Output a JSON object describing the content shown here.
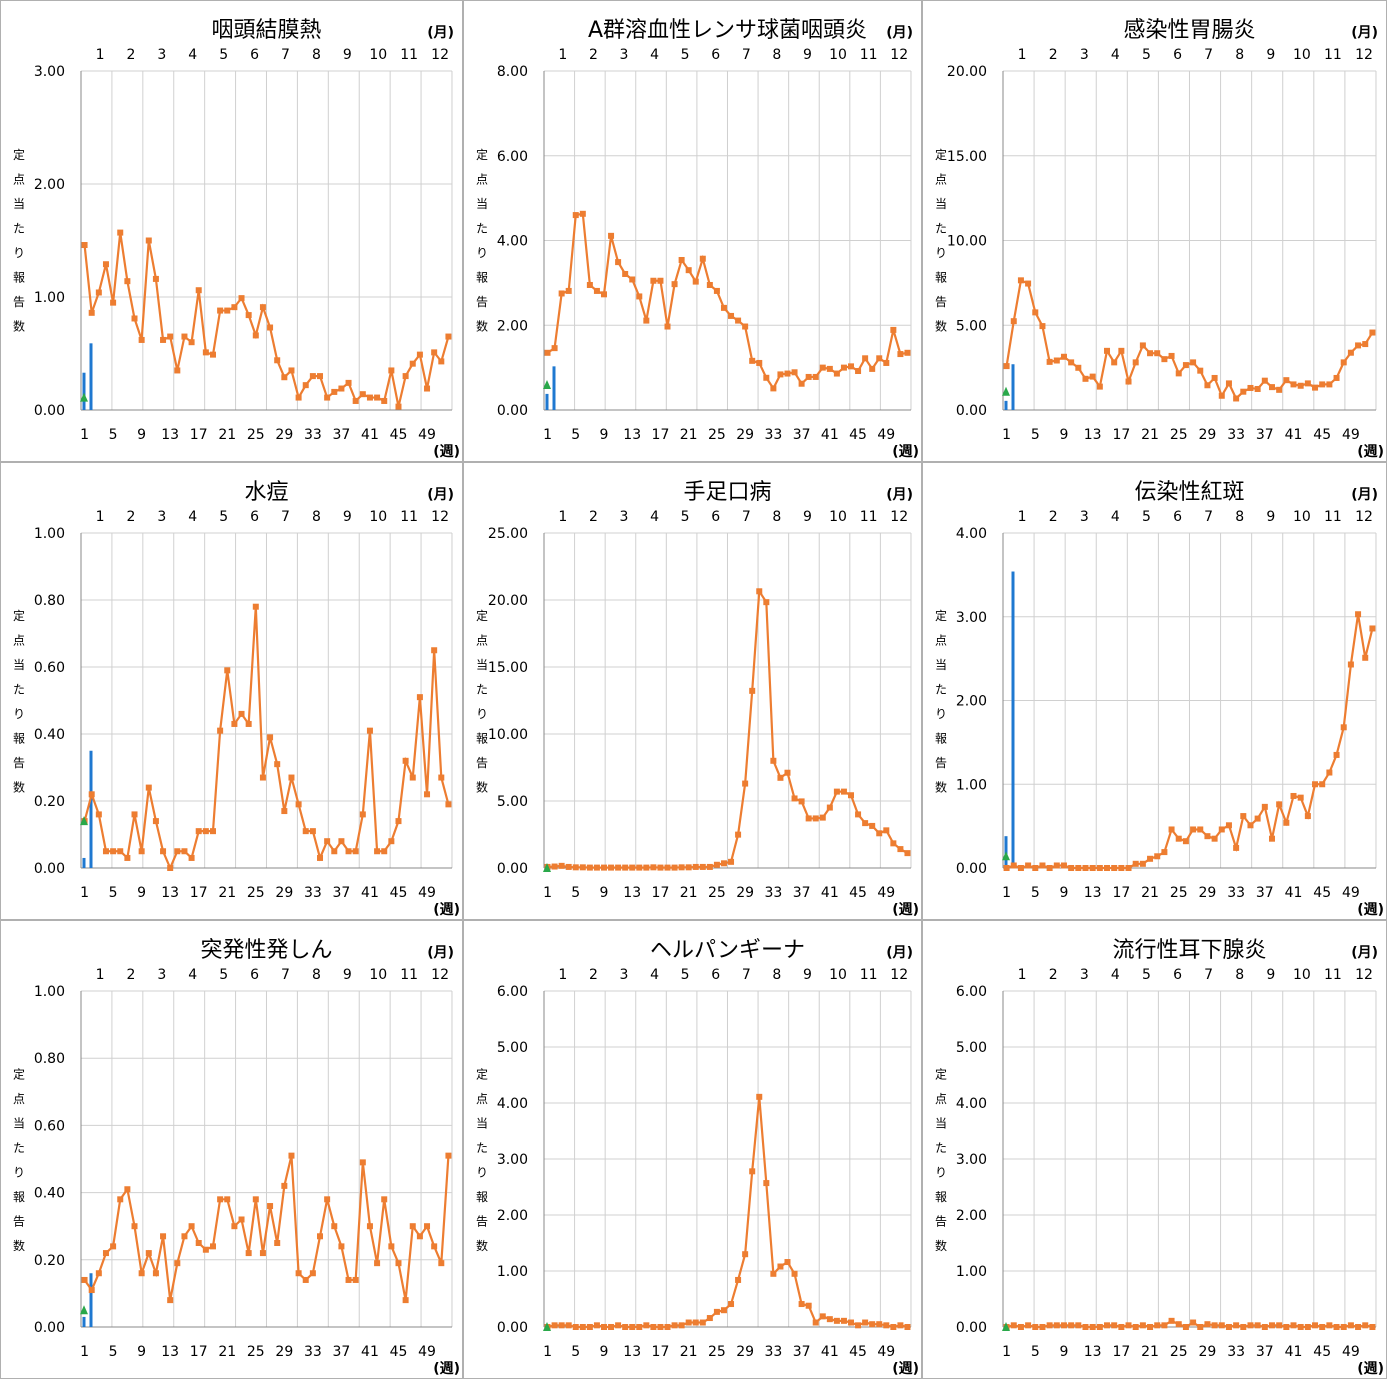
{
  "common": {
    "month_unit": "(月)",
    "week_unit": "(週)",
    "y_label_chars": [
      "定",
      "点",
      "当",
      "た",
      "り",
      "報",
      "告",
      "数"
    ],
    "month_labels": [
      "1",
      "2",
      "3",
      "4",
      "5",
      "6",
      "7",
      "8",
      "9",
      "10",
      "11",
      "12"
    ],
    "x_tick_labels": [
      "1",
      "5",
      "9",
      "13",
      "17",
      "21",
      "25",
      "29",
      "33",
      "37",
      "41",
      "45",
      "49"
    ],
    "colors": {
      "current_line": "#ED7D31",
      "bar": "#1F78D0",
      "marker_prev": "#2AA84A",
      "grid": "#D0D0D0"
    }
  },
  "chart_data": [
    {
      "type": "line",
      "title": "咽頭結膜熱",
      "ylim": [
        0,
        3
      ],
      "y_ticks": [
        "0.00",
        "1.00",
        "2.00",
        "3.00"
      ],
      "series": [
        {
          "values": [
            1.46,
            0.86,
            1.04,
            1.29,
            0.95,
            1.57,
            1.14,
            0.81,
            0.62,
            1.5,
            1.16,
            0.62,
            0.65,
            0.35,
            0.65,
            0.6,
            1.06,
            0.51,
            0.49,
            0.88,
            0.88,
            0.91,
            0.99,
            0.84,
            0.66,
            0.91,
            0.73,
            0.44,
            0.29,
            0.35,
            0.11,
            0.22,
            0.3,
            0.3,
            0.11,
            0.16,
            0.19,
            0.24,
            0.08,
            0.14,
            0.11,
            0.11,
            0.08,
            0.35,
            0.03,
            0.3,
            0.41,
            0.49,
            0.19,
            0.51,
            0.43,
            0.65
          ]
        }
      ],
      "bars": [
        0.33,
        0.59
      ],
      "marker": 0.11
    },
    {
      "type": "line",
      "title": "A群溶血性レンサ球菌咽頭炎",
      "ylim": [
        0,
        8
      ],
      "y_ticks": [
        "0.00",
        "2.00",
        "4.00",
        "6.00",
        "8.00"
      ],
      "series": [
        {
          "values": [
            1.35,
            1.46,
            2.75,
            2.81,
            4.6,
            4.63,
            2.95,
            2.81,
            2.73,
            4.11,
            3.49,
            3.21,
            3.08,
            2.68,
            2.11,
            3.05,
            3.05,
            1.97,
            2.97,
            3.54,
            3.3,
            3.03,
            3.57,
            2.95,
            2.81,
            2.41,
            2.22,
            2.11,
            1.97,
            1.16,
            1.11,
            0.76,
            0.51,
            0.84,
            0.86,
            0.89,
            0.62,
            0.78,
            0.78,
            1.0,
            0.97,
            0.86,
            1.0,
            1.03,
            0.92,
            1.22,
            0.97,
            1.22,
            1.11,
            1.89,
            1.32,
            1.35
          ]
        }
      ],
      "bars": [
        0.38,
        1.03
      ],
      "marker": 0.59
    },
    {
      "type": "line",
      "title": "感染性胃腸炎",
      "ylim": [
        0,
        20
      ],
      "y_ticks": [
        "0.00",
        "5.00",
        "10.00",
        "15.00",
        "20.00"
      ],
      "series": [
        {
          "values": [
            2.59,
            5.24,
            7.65,
            7.46,
            5.76,
            4.95,
            2.84,
            2.92,
            3.14,
            2.81,
            2.49,
            1.84,
            1.97,
            1.38,
            3.49,
            2.81,
            3.49,
            1.68,
            2.81,
            3.81,
            3.35,
            3.35,
            3.0,
            3.19,
            2.16,
            2.65,
            2.81,
            2.32,
            1.46,
            1.89,
            0.84,
            1.57,
            0.68,
            1.08,
            1.3,
            1.24,
            1.73,
            1.35,
            1.19,
            1.76,
            1.51,
            1.43,
            1.57,
            1.32,
            1.51,
            1.51,
            1.89,
            2.81,
            3.38,
            3.81,
            3.89,
            4.57
          ]
        }
      ],
      "bars": [
        0.54,
        2.7
      ],
      "marker": 1.08
    },
    {
      "type": "line",
      "title": "水痘",
      "ylim": [
        0,
        1
      ],
      "y_ticks": [
        "0.00",
        "0.20",
        "0.40",
        "0.60",
        "0.80",
        "1.00"
      ],
      "series": [
        {
          "values": [
            0.14,
            0.22,
            0.16,
            0.05,
            0.05,
            0.05,
            0.03,
            0.16,
            0.05,
            0.24,
            0.14,
            0.05,
            0.0,
            0.05,
            0.05,
            0.03,
            0.11,
            0.11,
            0.11,
            0.41,
            0.59,
            0.43,
            0.46,
            0.43,
            0.78,
            0.27,
            0.39,
            0.31,
            0.17,
            0.27,
            0.19,
            0.11,
            0.11,
            0.03,
            0.08,
            0.05,
            0.08,
            0.05,
            0.05,
            0.16,
            0.41,
            0.05,
            0.05,
            0.08,
            0.14,
            0.32,
            0.27,
            0.51,
            0.22,
            0.65,
            0.27,
            0.19
          ]
        }
      ],
      "bars": [
        0.03,
        0.35
      ],
      "marker": 0.14
    },
    {
      "type": "line",
      "title": "手足口病",
      "ylim": [
        0,
        25
      ],
      "y_ticks": [
        "0.00",
        "5.00",
        "10.00",
        "15.00",
        "20.00",
        "25.00"
      ],
      "series": [
        {
          "values": [
            0.08,
            0.11,
            0.16,
            0.08,
            0.05,
            0.05,
            0.03,
            0.03,
            0.03,
            0.03,
            0.03,
            0.03,
            0.03,
            0.03,
            0.03,
            0.05,
            0.03,
            0.03,
            0.03,
            0.05,
            0.05,
            0.08,
            0.08,
            0.08,
            0.24,
            0.35,
            0.46,
            2.49,
            6.3,
            13.22,
            20.65,
            19.84,
            8.0,
            6.73,
            7.11,
            5.19,
            4.97,
            3.7,
            3.7,
            3.76,
            4.51,
            5.7,
            5.7,
            5.43,
            4.0,
            3.35,
            3.14,
            2.59,
            2.81,
            1.84,
            1.41,
            1.11
          ]
        }
      ],
      "bars": [
        0.0,
        0.0
      ],
      "marker": 0.0
    },
    {
      "type": "line",
      "title": "伝染性紅斑",
      "ylim": [
        0,
        4
      ],
      "y_ticks": [
        "0.00",
        "1.00",
        "2.00",
        "3.00",
        "4.00"
      ],
      "series": [
        {
          "values": [
            0.0,
            0.03,
            0.0,
            0.03,
            0.0,
            0.03,
            0.0,
            0.03,
            0.03,
            0.0,
            0.0,
            0.0,
            0.0,
            0.0,
            0.0,
            0.0,
            0.0,
            0.0,
            0.05,
            0.05,
            0.11,
            0.14,
            0.19,
            0.46,
            0.35,
            0.32,
            0.46,
            0.46,
            0.38,
            0.35,
            0.46,
            0.51,
            0.24,
            0.62,
            0.51,
            0.59,
            0.73,
            0.35,
            0.76,
            0.54,
            0.86,
            0.84,
            0.62,
            1.0,
            1.0,
            1.14,
            1.35,
            1.68,
            2.43,
            3.03,
            2.51,
            2.86
          ]
        }
      ],
      "bars": [
        0.38,
        3.54
      ],
      "marker": 0.14
    },
    {
      "type": "line",
      "title": "突発性発しん",
      "ylim": [
        0,
        1
      ],
      "y_ticks": [
        "0.00",
        "0.20",
        "0.40",
        "0.60",
        "0.80",
        "1.00"
      ],
      "series": [
        {
          "values": [
            0.14,
            0.11,
            0.16,
            0.22,
            0.24,
            0.38,
            0.41,
            0.3,
            0.16,
            0.22,
            0.16,
            0.27,
            0.08,
            0.19,
            0.27,
            0.3,
            0.25,
            0.23,
            0.24,
            0.38,
            0.38,
            0.3,
            0.32,
            0.22,
            0.38,
            0.22,
            0.36,
            0.25,
            0.42,
            0.51,
            0.16,
            0.14,
            0.16,
            0.27,
            0.38,
            0.3,
            0.24,
            0.14,
            0.14,
            0.49,
            0.3,
            0.19,
            0.38,
            0.24,
            0.19,
            0.08,
            0.3,
            0.27,
            0.3,
            0.24,
            0.19,
            0.51
          ]
        }
      ],
      "bars": [
        0.03,
        0.16
      ],
      "marker": 0.05
    },
    {
      "type": "line",
      "title": "ヘルパンギーナ",
      "ylim": [
        0,
        6
      ],
      "y_ticks": [
        "0.00",
        "1.00",
        "2.00",
        "3.00",
        "4.00",
        "5.00",
        "6.00"
      ],
      "series": [
        {
          "values": [
            0.0,
            0.03,
            0.03,
            0.03,
            0.0,
            0.0,
            0.0,
            0.03,
            0.0,
            0.0,
            0.03,
            0.0,
            0.0,
            0.0,
            0.03,
            0.0,
            0.0,
            0.0,
            0.03,
            0.03,
            0.08,
            0.08,
            0.08,
            0.16,
            0.27,
            0.3,
            0.41,
            0.84,
            1.3,
            2.78,
            4.11,
            2.57,
            0.95,
            1.08,
            1.16,
            0.95,
            0.41,
            0.38,
            0.08,
            0.19,
            0.14,
            0.11,
            0.11,
            0.08,
            0.03,
            0.08,
            0.05,
            0.05,
            0.03,
            0.0,
            0.03,
            0.0
          ]
        }
      ],
      "bars": [
        0.0,
        0.0
      ],
      "marker": 0.0
    },
    {
      "type": "line",
      "title": "流行性耳下腺炎",
      "ylim": [
        0,
        6
      ],
      "y_ticks": [
        "0.00",
        "1.00",
        "2.00",
        "3.00",
        "4.00",
        "5.00",
        "6.00"
      ],
      "series": [
        {
          "values": [
            0.0,
            0.03,
            0.0,
            0.03,
            0.0,
            0.0,
            0.03,
            0.03,
            0.03,
            0.03,
            0.03,
            0.0,
            0.0,
            0.0,
            0.03,
            0.03,
            0.0,
            0.03,
            0.0,
            0.03,
            0.0,
            0.03,
            0.03,
            0.11,
            0.05,
            0.0,
            0.08,
            0.0,
            0.05,
            0.03,
            0.03,
            0.0,
            0.03,
            0.0,
            0.03,
            0.03,
            0.0,
            0.03,
            0.03,
            0.0,
            0.03,
            0.0,
            0.0,
            0.03,
            0.0,
            0.03,
            0.0,
            0.0,
            0.03,
            0.0,
            0.03,
            0.0
          ]
        }
      ],
      "bars": [
        0.0,
        0.0
      ],
      "marker": 0.0
    }
  ]
}
